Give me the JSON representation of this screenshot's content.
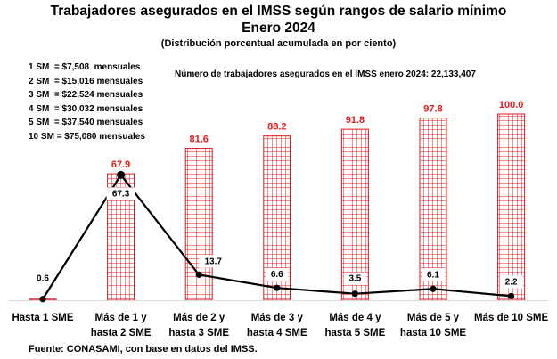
{
  "title": "Trabajadores asegurados en el IMSS según rangos de salario mínimo",
  "subtitle": "Enero 2024",
  "subtitle2": "(Distribución porcentual acumulada en por ciento)",
  "legend_lines": [
    "1 SM  = $7,508  mensuales",
    "2 SM  = $15,016 mensuales",
    "3 SM  = $22,524 mensuales",
    "4 SM  = $30,032 mensuales",
    "5 SM  = $37,540 mensuales",
    "10 SM = $75,080 mensuales"
  ],
  "note": "Número de trabajadores asegurados en el IMSS enero 2024: 22,133,407",
  "source": "Fuente: CONASAMI, con base en datos del IMSS.",
  "colors": {
    "bar": "#e31a1c",
    "line": "#000000"
  },
  "chart_data": {
    "type": "bar",
    "categories": [
      [
        "Hasta 1 SME"
      ],
      [
        "Más de 1 y",
        "hasta 2 SME"
      ],
      [
        "Más de 2 y",
        "hasta 3 SME"
      ],
      [
        "Más de 3 y",
        "hasta 4 SME"
      ],
      [
        "Más de 4 y",
        "hasta 5 SME"
      ],
      [
        "Más de 5 y",
        "hasta 10 SME"
      ],
      [
        "Más de 10 SME"
      ]
    ],
    "series": [
      {
        "type": "bar",
        "pattern": "grid",
        "values": [
          0.6,
          67.9,
          81.6,
          88.2,
          91.8,
          97.8,
          100.0
        ],
        "labels": [
          "0.6",
          "67.9",
          "81.6",
          "88.2",
          "91.8",
          "97.8",
          "100.0"
        ]
      },
      {
        "type": "line",
        "values": [
          0.6,
          67.3,
          13.7,
          6.6,
          3.5,
          6.1,
          2.2
        ],
        "labels": [
          "0.6",
          "67.3",
          "13.7",
          "6.6",
          "3.5",
          "6.1",
          "2.2"
        ]
      }
    ],
    "ylim": [
      0,
      100
    ],
    "grid": false
  }
}
